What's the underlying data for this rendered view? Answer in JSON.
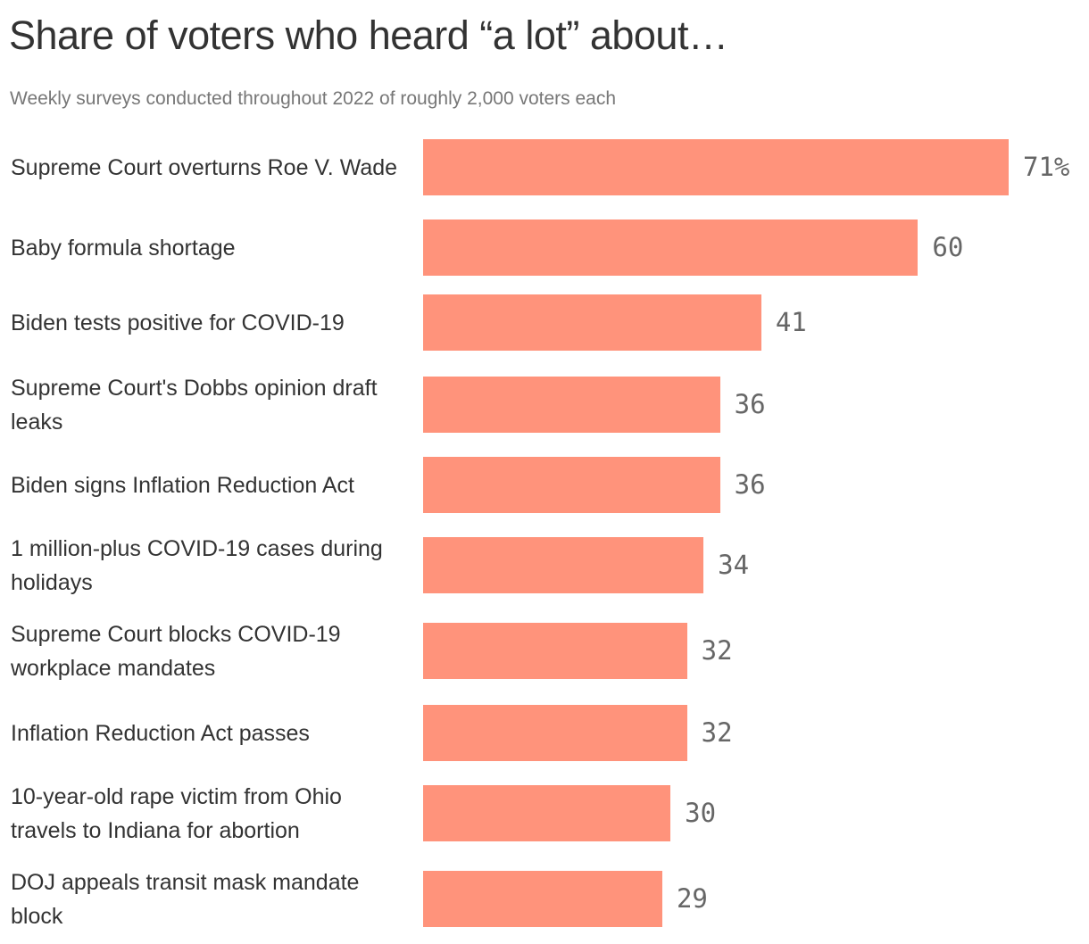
{
  "chart_data": {
    "type": "bar",
    "orientation": "horizontal",
    "title": "Share of voters who heard “a lot” about…",
    "subtitle": "Weekly surveys conducted throughout 2022 of roughly 2,000 voters each",
    "categories": [
      "Supreme Court overturns Roe V. Wade",
      "Baby formula shortage",
      "Biden tests positive for COVID-19",
      "Supreme Court's Dobbs opinion draft leaks",
      "Biden signs Inflation Reduction Act",
      "1 million-plus COVID-19 cases during holidays",
      "Supreme Court blocks COVID-19 workplace mandates",
      "Inflation Reduction Act passes",
      "10-year-old rape victim from Ohio travels to Indiana for abortion",
      "DOJ appeals transit mask mandate block"
    ],
    "values": [
      71,
      60,
      41,
      36,
      36,
      34,
      32,
      32,
      30,
      29
    ],
    "value_labels": [
      "71%",
      "60",
      "41",
      "36",
      "36",
      "34",
      "32",
      "32",
      "30",
      "29"
    ],
    "unit": "%",
    "xlim": [
      0,
      71
    ],
    "grid": false,
    "bar_color": "#ff937b"
  }
}
